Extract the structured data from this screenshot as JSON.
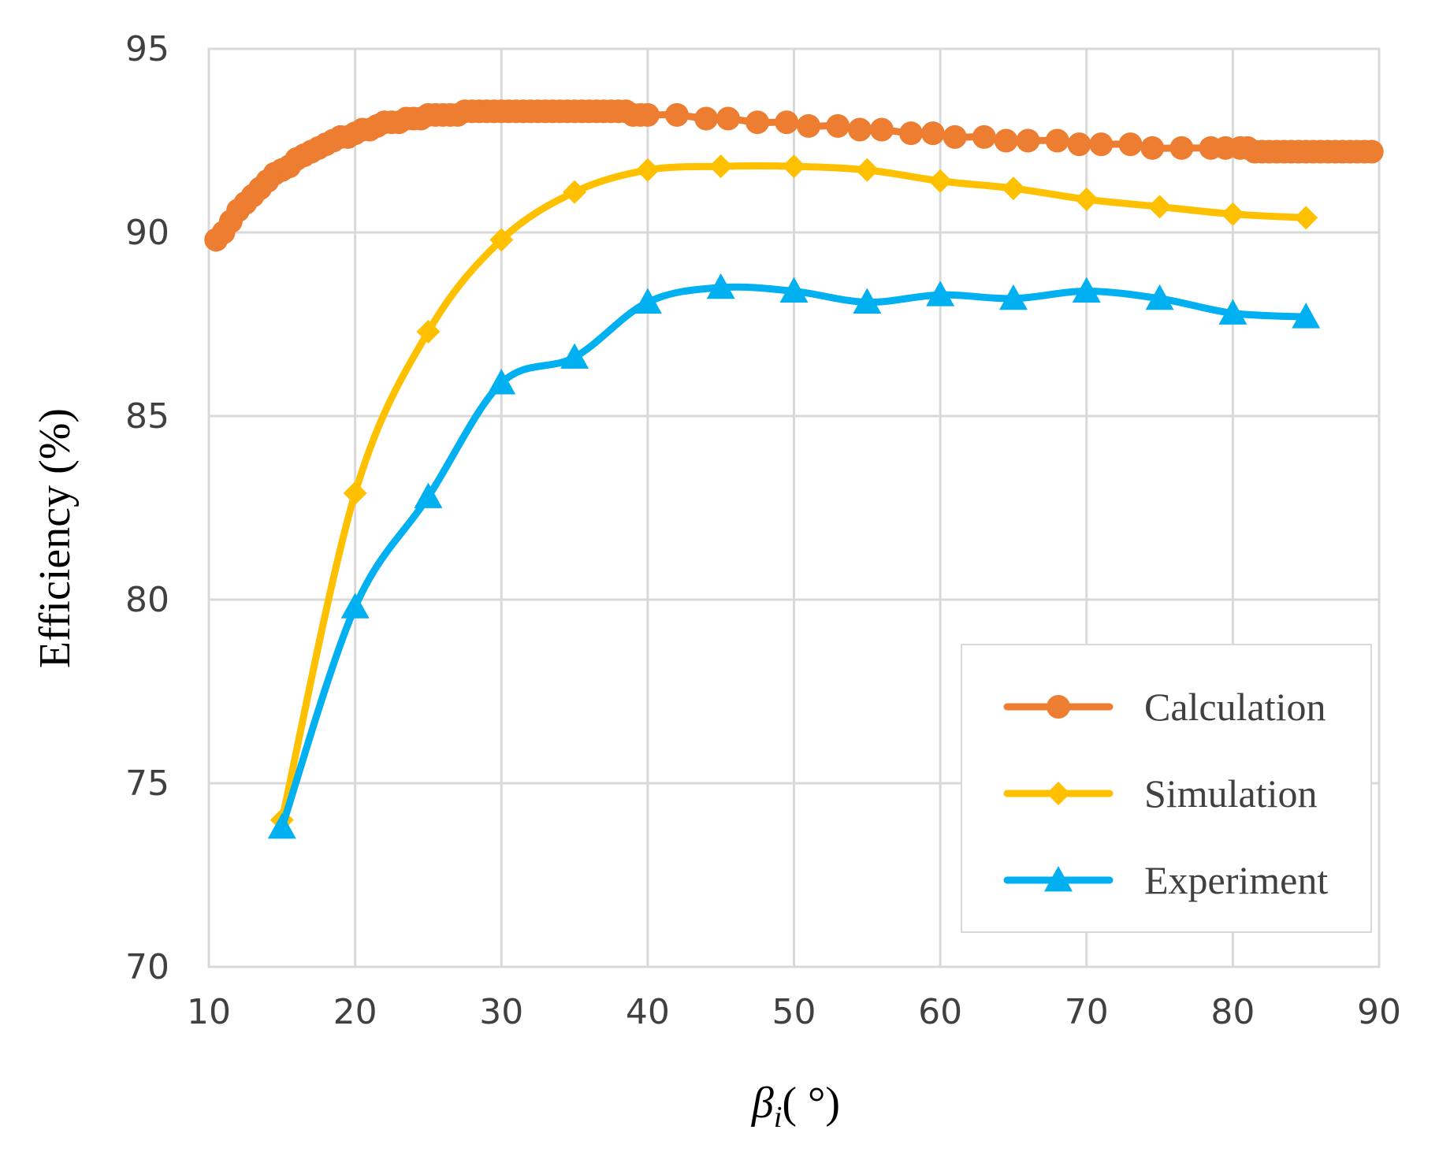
{
  "chart_data": {
    "type": "line",
    "title": "",
    "xlabel": "βi( °)",
    "xlabel_symbol": "β",
    "xlabel_subscript": "i",
    "xlabel_unit": "( °)",
    "ylabel": "Efficiency (%)",
    "xlim": [
      10,
      90
    ],
    "ylim": [
      70,
      95
    ],
    "xticks": [
      10,
      20,
      30,
      40,
      50,
      60,
      70,
      80,
      90
    ],
    "yticks": [
      70,
      75,
      80,
      85,
      90,
      95
    ],
    "grid": true,
    "legend_position": "bottom-right",
    "series": [
      {
        "name": "Calculation",
        "color": "#ED7D31",
        "marker": "circle",
        "x": [
          10.5,
          11,
          11.5,
          12,
          12.5,
          13,
          13.5,
          14,
          14.5,
          15,
          15.5,
          16,
          16.5,
          17,
          17.5,
          18,
          18.5,
          19,
          19.5,
          20,
          20.5,
          21,
          21.5,
          22,
          22.5,
          23,
          23.5,
          24,
          24.5,
          25,
          25.5,
          26,
          26.5,
          27,
          27.5,
          28,
          28.5,
          29,
          29.5,
          30,
          30.5,
          31,
          31.5,
          32,
          32.5,
          33,
          33.5,
          34,
          34.5,
          35,
          35.5,
          36,
          36.5,
          37,
          37.5,
          38,
          38.5,
          39,
          39.5,
          40,
          42,
          44,
          45.5,
          47.5,
          49.5,
          51,
          53,
          54.5,
          56,
          58,
          59.5,
          61,
          63,
          64.5,
          66,
          68,
          69.5,
          71,
          73,
          74.5,
          76.5,
          78.5,
          79.5,
          80.5,
          81,
          81.5,
          82,
          82.5,
          83,
          83.5,
          84,
          84.5,
          85,
          85.5,
          86,
          86.5,
          87,
          87.5,
          88,
          88.5,
          89,
          89.5
        ],
        "values": [
          89.8,
          90,
          90.3,
          90.6,
          90.8,
          91,
          91.2,
          91.4,
          91.6,
          91.7,
          91.8,
          92,
          92.1,
          92.2,
          92.3,
          92.4,
          92.5,
          92.6,
          92.6,
          92.7,
          92.8,
          92.8,
          92.9,
          93,
          93,
          93,
          93.1,
          93.1,
          93.1,
          93.2,
          93.2,
          93.2,
          93.2,
          93.2,
          93.3,
          93.3,
          93.3,
          93.3,
          93.3,
          93.3,
          93.3,
          93.3,
          93.3,
          93.3,
          93.3,
          93.3,
          93.3,
          93.3,
          93.3,
          93.3,
          93.3,
          93.3,
          93.3,
          93.3,
          93.3,
          93.3,
          93.3,
          93.2,
          93.2,
          93.2,
          93.2,
          93.1,
          93.1,
          93,
          93,
          92.9,
          92.9,
          92.8,
          92.8,
          92.7,
          92.7,
          92.6,
          92.6,
          92.5,
          92.5,
          92.5,
          92.4,
          92.4,
          92.4,
          92.3,
          92.3,
          92.3,
          92.3,
          92.3,
          92.3,
          92.2,
          92.2,
          92.2,
          92.2,
          92.2,
          92.2,
          92.2,
          92.2,
          92.2,
          92.2,
          92.2,
          92.2,
          92.2,
          92.2,
          92.2,
          92.2,
          92.2
        ]
      },
      {
        "name": "Simulation",
        "color": "#FFC000",
        "marker": "diamond",
        "x": [
          15,
          20,
          25,
          30,
          35,
          40,
          45,
          50,
          55,
          60,
          65,
          70,
          75,
          80,
          85
        ],
        "values": [
          74,
          82.9,
          87.3,
          89.8,
          91.1,
          91.7,
          91.8,
          91.8,
          91.7,
          91.4,
          91.2,
          90.9,
          90.7,
          90.5,
          90.4
        ]
      },
      {
        "name": "Experiment",
        "color": "#00B0F0",
        "marker": "triangle",
        "x": [
          15,
          20,
          25,
          30,
          35,
          40,
          45,
          50,
          55,
          60,
          65,
          70,
          75,
          80,
          85
        ],
        "values": [
          73.8,
          79.8,
          82.8,
          85.9,
          86.6,
          88.1,
          88.5,
          88.4,
          88.1,
          88.3,
          88.2,
          88.4,
          88.2,
          87.8,
          87.7
        ]
      }
    ]
  }
}
